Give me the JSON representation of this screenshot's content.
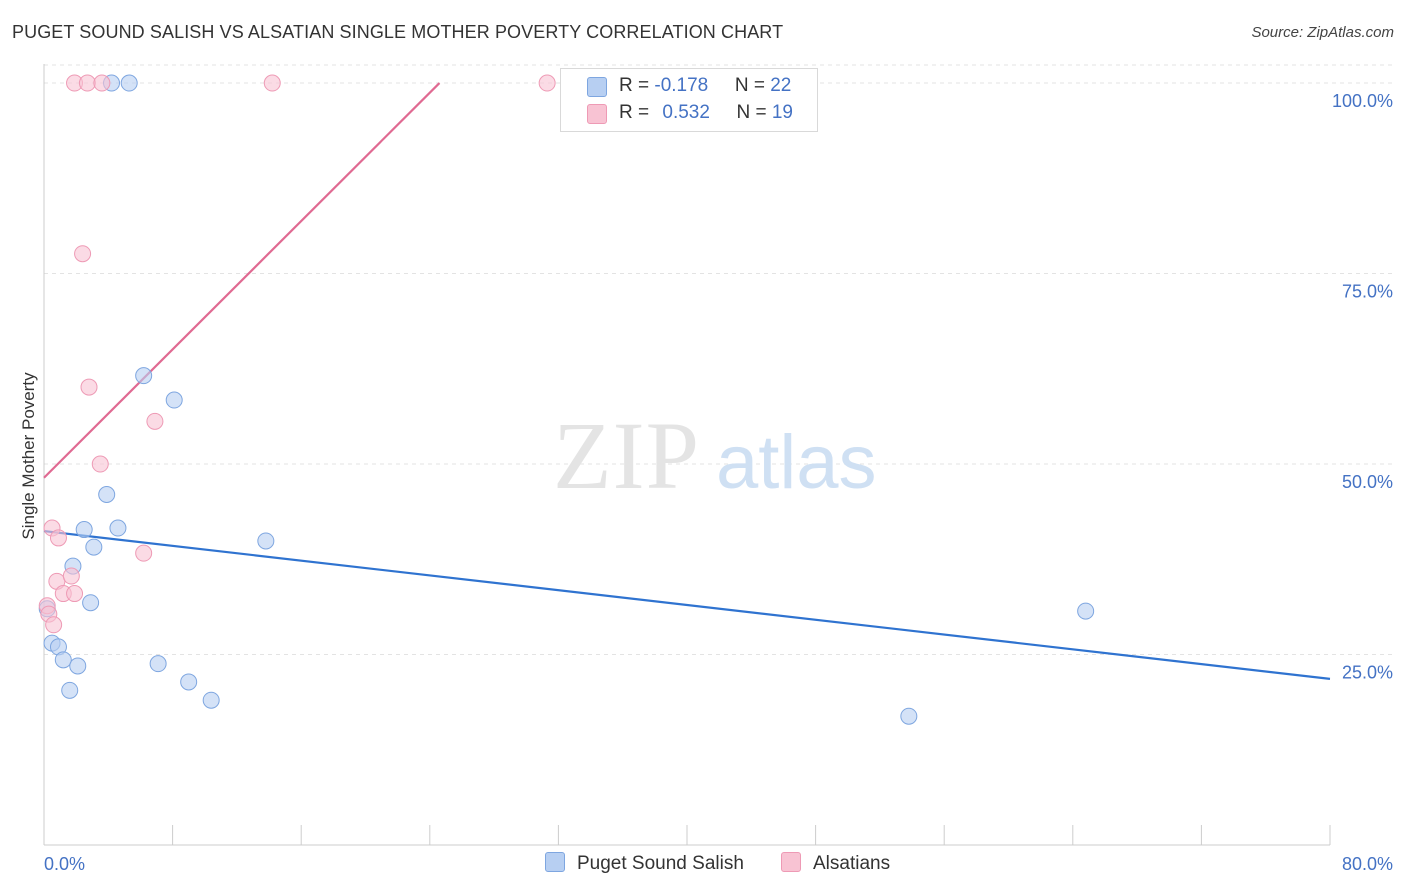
{
  "title": "PUGET SOUND SALISH VS ALSATIAN SINGLE MOTHER POVERTY CORRELATION CHART",
  "source": "Source: ZipAtlas.com",
  "watermark": {
    "zip": "ZIP",
    "atlas": "atlas"
  },
  "colors": {
    "blue_fill": "#b7cff2",
    "blue_stroke": "#7ea6e0",
    "blue_line": "#2f73d0",
    "pink_fill": "#f8c3d3",
    "pink_stroke": "#ee9ab5",
    "pink_line": "#e06a92",
    "tick": "#4472c4",
    "grid": "#e3e3e3"
  },
  "legend": {
    "rows": [
      {
        "r_label": "R = ",
        "r_value": "-0.178",
        "n_label": "N = ",
        "n_value": "22"
      },
      {
        "r_label": "R = ",
        "r_value": "0.532",
        "n_label": "N = ",
        "n_value": "19"
      }
    ]
  },
  "chart_data": {
    "type": "scatter",
    "title": "PUGET SOUND SALISH VS ALSATIAN SINGLE MOTHER POVERTY CORRELATION CHART",
    "xlabel": "",
    "ylabel": "Single Mother Poverty",
    "xlim": [
      0,
      80
    ],
    "ylim": [
      0,
      102.5
    ],
    "x_tick_labels": [
      "0.0%",
      "80.0%"
    ],
    "y_ticks": [
      25,
      50,
      75,
      100
    ],
    "y_tick_labels": [
      "25.0%",
      "50.0%",
      "75.0%",
      "100.0%"
    ],
    "grid": true,
    "series": [
      {
        "name": "Puget Sound Salish",
        "color": "blue",
        "points": [
          [
            0.2,
            31.0
          ],
          [
            0.5,
            26.5
          ],
          [
            0.9,
            26.0
          ],
          [
            1.2,
            24.3
          ],
          [
            1.6,
            20.3
          ],
          [
            1.8,
            36.6
          ],
          [
            2.1,
            23.5
          ],
          [
            2.5,
            41.4
          ],
          [
            2.9,
            31.8
          ],
          [
            3.1,
            39.1
          ],
          [
            3.9,
            46.0
          ],
          [
            4.2,
            100.0
          ],
          [
            4.6,
            41.6
          ],
          [
            5.3,
            100.0
          ],
          [
            6.2,
            61.6
          ],
          [
            7.1,
            23.8
          ],
          [
            8.1,
            58.4
          ],
          [
            9.0,
            21.4
          ],
          [
            10.4,
            19.0
          ],
          [
            13.8,
            39.9
          ],
          [
            53.8,
            16.9
          ],
          [
            64.8,
            30.7
          ]
        ],
        "trend": {
          "x": [
            0,
            80
          ],
          "y": [
            41.2,
            21.8
          ]
        }
      },
      {
        "name": "Alsatians",
        "color": "pink",
        "points": [
          [
            0.2,
            31.4
          ],
          [
            0.3,
            30.3
          ],
          [
            0.5,
            41.6
          ],
          [
            0.6,
            28.9
          ],
          [
            0.8,
            34.6
          ],
          [
            0.9,
            40.3
          ],
          [
            1.2,
            33.0
          ],
          [
            1.7,
            35.3
          ],
          [
            1.9,
            33.0
          ],
          [
            1.9,
            100.0
          ],
          [
            2.4,
            77.6
          ],
          [
            2.7,
            100.0
          ],
          [
            2.8,
            60.1
          ],
          [
            3.5,
            50.0
          ],
          [
            3.6,
            100.0
          ],
          [
            6.2,
            38.3
          ],
          [
            6.9,
            55.6
          ],
          [
            14.2,
            100.0
          ],
          [
            31.3,
            100.0
          ]
        ],
        "trend": {
          "x": [
            0,
            24.6
          ],
          "y": [
            48.2,
            100.0
          ]
        }
      }
    ]
  },
  "bottom_legend": [
    "Puget Sound Salish",
    "Alsatians"
  ]
}
